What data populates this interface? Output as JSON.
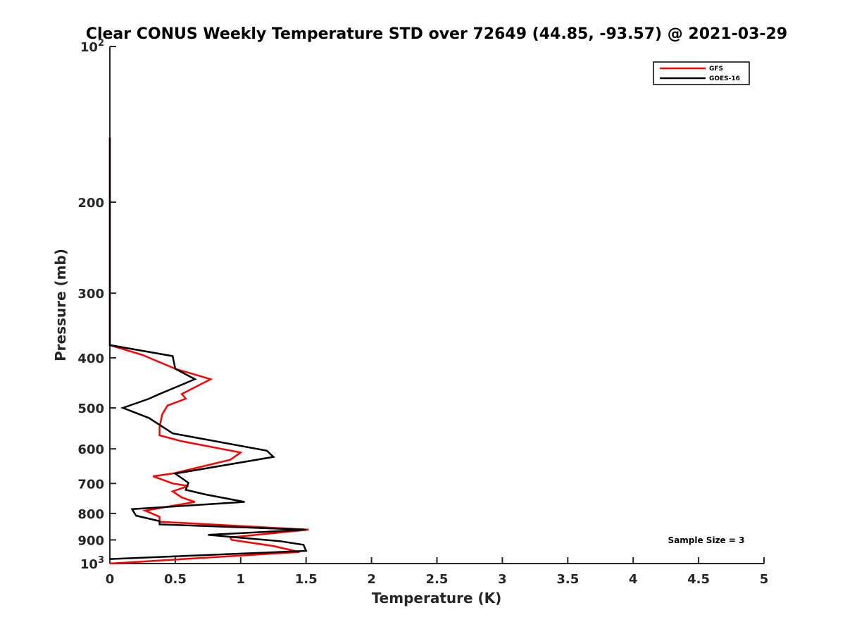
{
  "chart_data": {
    "type": "line",
    "title": "Clear CONUS Weekly Temperature STD over 72649 (44.85, -93.57) @ 2021-03-29",
    "xlabel": "Temperature (K)",
    "ylabel": "Pressure (mb)",
    "xlim": [
      0,
      5
    ],
    "ylim": [
      1000,
      100
    ],
    "yscale": "log",
    "x_ticks": [
      "0",
      "0.5",
      "1",
      "1.5",
      "2",
      "2.5",
      "3",
      "3.5",
      "4",
      "4.5",
      "5"
    ],
    "y_ticks": [
      {
        "value": 100,
        "base": "10",
        "exp": "2"
      },
      {
        "value": 200,
        "label": "200"
      },
      {
        "value": 300,
        "label": "300"
      },
      {
        "value": 400,
        "label": "400"
      },
      {
        "value": 500,
        "label": "500"
      },
      {
        "value": 600,
        "label": "600"
      },
      {
        "value": 700,
        "label": "700"
      },
      {
        "value": 800,
        "label": "800"
      },
      {
        "value": 900,
        "label": "900"
      },
      {
        "value": 1000,
        "base": "10",
        "exp": "3"
      }
    ],
    "legend_position": "top-right",
    "grid": false,
    "series": [
      {
        "name": "GFS",
        "color": "#ff0000",
        "points": [
          [
            0,
            150
          ],
          [
            0,
            378
          ],
          [
            0.25,
            395
          ],
          [
            0.5,
            420
          ],
          [
            0.77,
            440
          ],
          [
            0.55,
            470
          ],
          [
            0.58,
            480
          ],
          [
            0.44,
            495
          ],
          [
            0.4,
            515
          ],
          [
            0.38,
            545
          ],
          [
            0.38,
            565
          ],
          [
            0.55,
            580
          ],
          [
            1.0,
            610
          ],
          [
            0.92,
            630
          ],
          [
            0.48,
            670
          ],
          [
            0.33,
            678
          ],
          [
            0.48,
            700
          ],
          [
            0.6,
            708
          ],
          [
            0.48,
            725
          ],
          [
            0.55,
            745
          ],
          [
            0.65,
            760
          ],
          [
            0.27,
            790
          ],
          [
            0.38,
            812
          ],
          [
            0.38,
            830
          ],
          [
            1.52,
            860
          ],
          [
            0.92,
            890
          ],
          [
            0.93,
            900
          ],
          [
            1.25,
            925
          ],
          [
            1.45,
            950
          ],
          [
            0,
            1000
          ]
        ]
      },
      {
        "name": "GOES-16",
        "color": "#000000",
        "points": [
          [
            0,
            150
          ],
          [
            0,
            378
          ],
          [
            0.48,
            397
          ],
          [
            0.5,
            420
          ],
          [
            0.65,
            440
          ],
          [
            0.38,
            470
          ],
          [
            0.3,
            480
          ],
          [
            0.1,
            500
          ],
          [
            0.3,
            523
          ],
          [
            0.48,
            560
          ],
          [
            1.2,
            605
          ],
          [
            1.25,
            622
          ],
          [
            0.5,
            670
          ],
          [
            0.6,
            698
          ],
          [
            0.58,
            720
          ],
          [
            0.73,
            735
          ],
          [
            1.03,
            760
          ],
          [
            0.17,
            785
          ],
          [
            0.2,
            808
          ],
          [
            0.38,
            828
          ],
          [
            0.38,
            840
          ],
          [
            1.5,
            860
          ],
          [
            0.75,
            880
          ],
          [
            1.3,
            905
          ],
          [
            1.48,
            920
          ],
          [
            1.5,
            945
          ],
          [
            0,
            980
          ]
        ]
      }
    ],
    "annotation": "Sample Size = 3"
  }
}
